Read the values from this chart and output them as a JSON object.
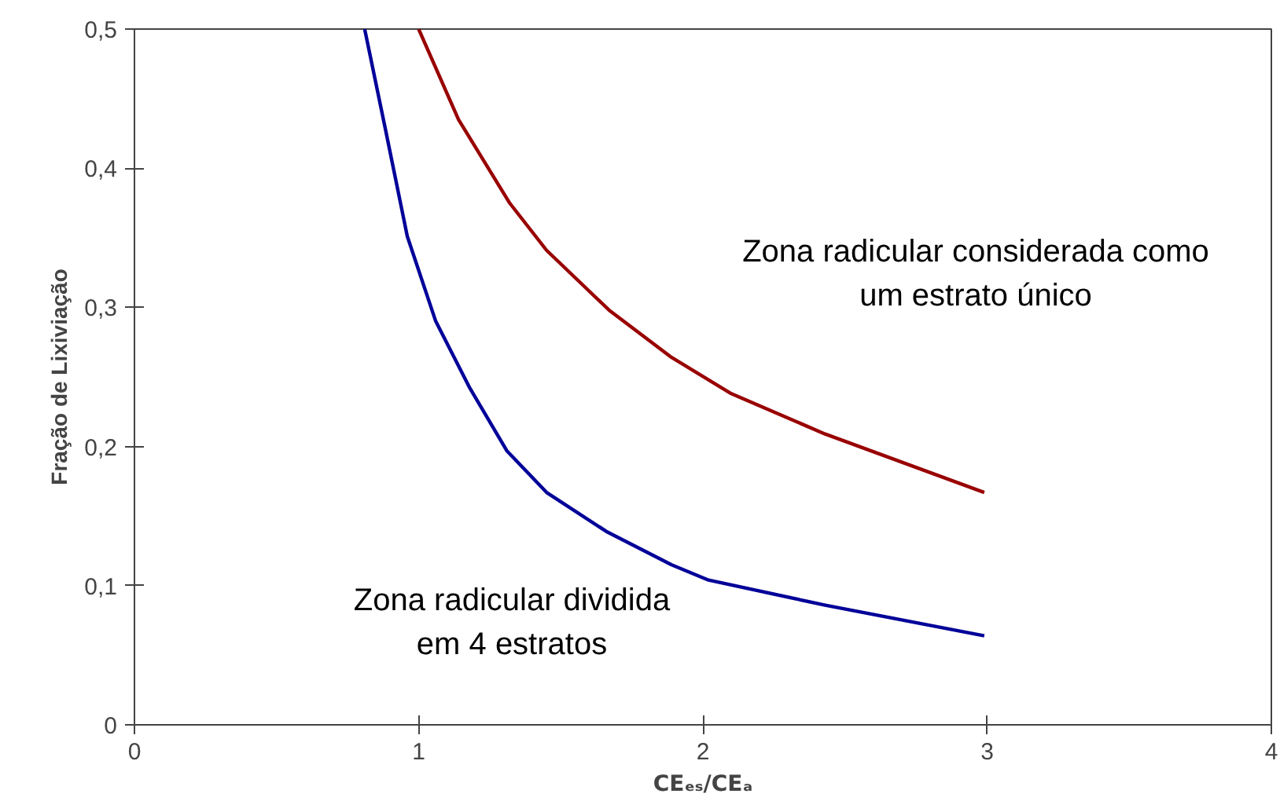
{
  "chart_data": {
    "type": "line",
    "xlabel": "CEₑₛ/CEₐ",
    "ylabel": "Fração de Lixiviação",
    "xlim": [
      0,
      4
    ],
    "ylim": [
      0,
      0.5
    ],
    "xticks": [
      0,
      1,
      2,
      3,
      4
    ],
    "yticks": [
      {
        "value": 0,
        "label": "0"
      },
      {
        "value": 0.1,
        "label": "0,1"
      },
      {
        "value": 0.2,
        "label": "0,2"
      },
      {
        "value": 0.3,
        "label": "0,3"
      },
      {
        "value": 0.4,
        "label": "0,4"
      },
      {
        "value": 0.5,
        "label": "0,5"
      }
    ],
    "grid": false,
    "series": [
      {
        "color": "#990000",
        "x": [
          1.0,
          1.14,
          1.32,
          1.45,
          1.67,
          1.89,
          2.1,
          2.43,
          2.99
        ],
        "values": [
          0.5,
          0.435,
          0.375,
          0.341,
          0.298,
          0.264,
          0.238,
          0.209,
          0.167
        ]
      },
      {
        "color": "#000099",
        "x": [
          0.81,
          0.88,
          0.96,
          1.06,
          1.18,
          1.31,
          1.45,
          1.66,
          1.89,
          2.02,
          2.43,
          2.99
        ],
        "values": [
          0.5,
          0.431,
          0.351,
          0.29,
          0.242,
          0.197,
          0.167,
          0.139,
          0.115,
          0.104,
          0.086,
          0.064
        ]
      }
    ],
    "annotations": [
      "Zona radicular considerada como\num estrato único",
      "Zona radicular dividida\nem 4 estratos"
    ]
  }
}
